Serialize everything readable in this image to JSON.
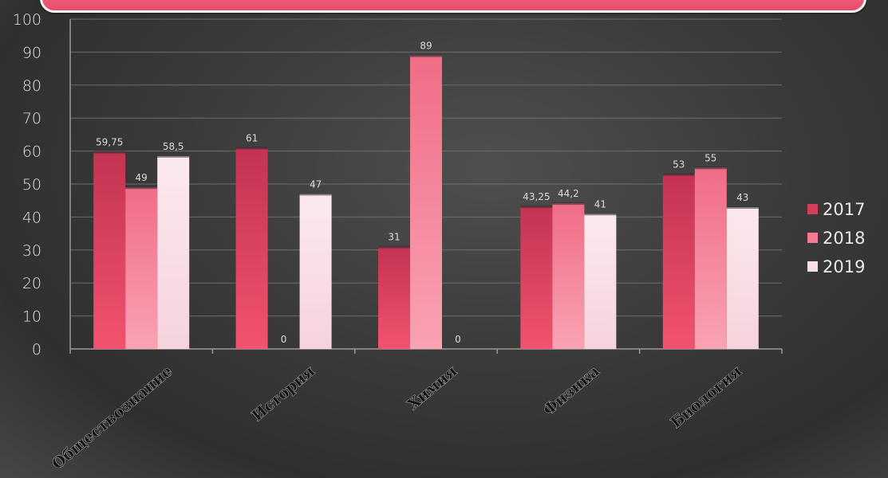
{
  "chart_data": {
    "type": "bar",
    "categories": [
      "Обществознание",
      "История",
      "Химия",
      "Физика",
      "Биология"
    ],
    "series": [
      {
        "name": "2017",
        "values": [
          59.75,
          61,
          31,
          43.25,
          53
        ],
        "labels": [
          "59,75",
          "61",
          "31",
          "43,25",
          "53"
        ],
        "color": "#d63c5c"
      },
      {
        "name": "2018",
        "values": [
          49,
          0,
          89,
          44.2,
          55
        ],
        "labels": [
          "49",
          "0",
          "89",
          "44,2",
          "55"
        ],
        "color": "#f47b92"
      },
      {
        "name": "2019",
        "values": [
          58.5,
          47,
          0,
          41,
          43
        ],
        "labels": [
          "58,5",
          "47",
          "0",
          "41",
          "43"
        ],
        "color": "#f8dfe6"
      }
    ],
    "yticks": [
      "0",
      "10",
      "20",
      "30",
      "40",
      "50",
      "60",
      "70",
      "80",
      "90",
      "100"
    ],
    "ylim": [
      0,
      100
    ],
    "grid": true,
    "legend": "right"
  }
}
